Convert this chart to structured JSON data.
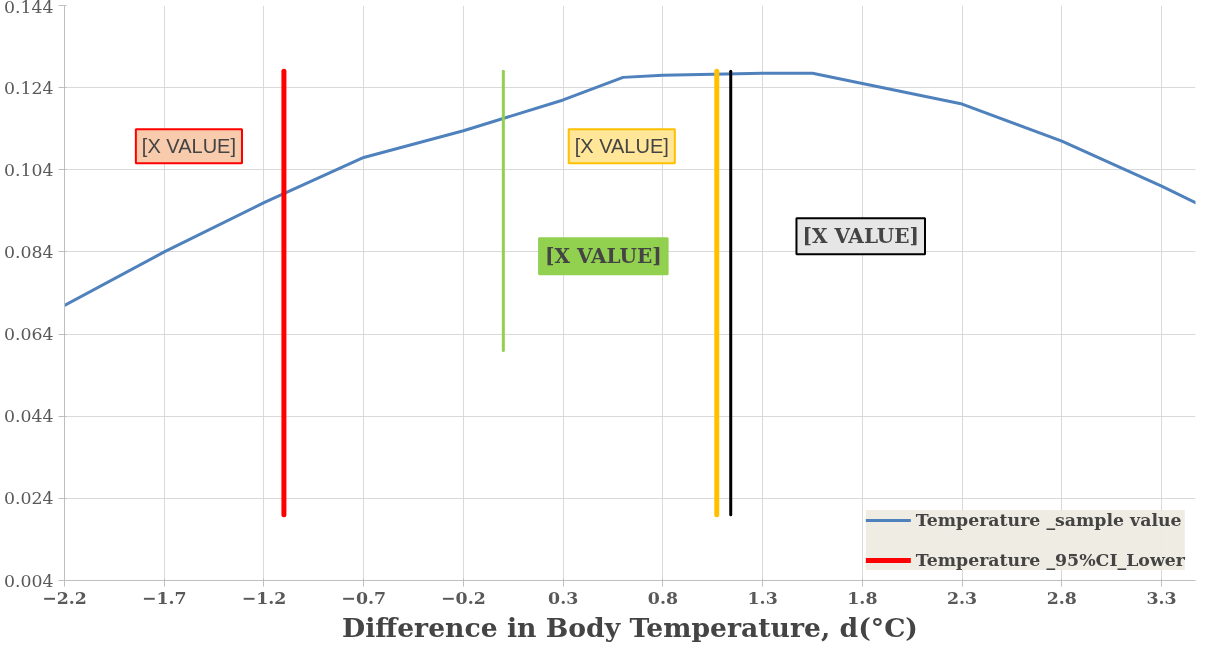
{
  "chart_data": {
    "type": "line",
    "xlabel": "Difference in Body Temperature, d(°C)",
    "xlim": [
      -2.2,
      3.47
    ],
    "xticks": [
      -2.2,
      -1.7,
      -1.2,
      -0.7,
      -0.2,
      0.3,
      0.8,
      1.3,
      1.8,
      2.3,
      2.8,
      3.3
    ],
    "ylim": [
      0.004,
      0.144
    ],
    "yticks": [
      0.004,
      0.024,
      0.044,
      0.064,
      0.084,
      0.104,
      0.124,
      0.144
    ],
    "grid": true,
    "legend": "bottom right",
    "line_style": "solid",
    "series": [
      {
        "name": "Temperature _sample value",
        "color": "#4f81bd",
        "x": [
          -2.2,
          -1.7,
          -1.2,
          -0.7,
          -0.2,
          0.3,
          0.6,
          0.8,
          1.3,
          1.55,
          1.8,
          2.3,
          2.8,
          3.3,
          3.47
        ],
        "values": [
          0.071,
          0.084,
          0.096,
          0.107,
          0.1135,
          0.121,
          0.1265,
          0.127,
          0.1275,
          0.1275,
          0.125,
          0.12,
          0.111,
          0.1,
          0.096
        ]
      },
      {
        "name": "Temperature _95%CI_Lower",
        "color": "#ff0000",
        "x": [
          -1.1,
          -1.1
        ],
        "values": [
          0.02,
          0.128
        ]
      },
      {
        "color": "#92d050",
        "x": [
          0.0,
          0.0
        ],
        "values": [
          0.06,
          0.128
        ]
      },
      {
        "color": "#ffc000",
        "x": [
          1.07,
          1.07
        ],
        "values": [
          0.02,
          0.128
        ]
      },
      {
        "color": "#000000",
        "x": [
          1.14,
          1.14
        ],
        "values": [
          0.02,
          0.128
        ]
      }
    ],
    "annotations": [
      "[X VALUE]",
      "[X VALUE]",
      "[X VALUE]",
      "[X VALUE]"
    ]
  }
}
